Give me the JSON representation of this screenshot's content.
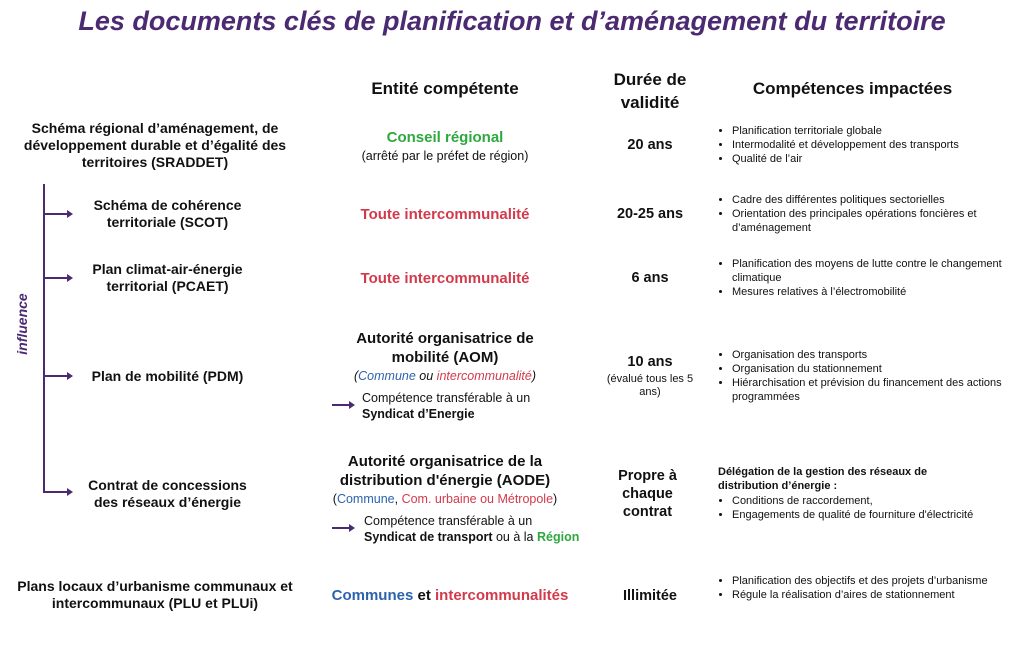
{
  "title": "Les documents clés de planification et d’aménagement du territoire",
  "headers": {
    "entity": "Entité compétente",
    "duration": "Durée de validité",
    "competences": "Compétences impactées"
  },
  "influence_label": "influence",
  "rows": [
    {
      "document": "Schéma régional d’aménagement, de développement durable et d’égalité des territoires (SRADDET)",
      "entity": "Conseil régional",
      "entity_note": "(arrêté par le préfet de région)",
      "duration": "20 ans",
      "competences": [
        "Planification territoriale globale",
        "Intermodalité et développement des transports",
        "Qualité de l’air"
      ]
    },
    {
      "document": "Schéma de cohérence territoriale (SCOT)",
      "entity": "Toute intercommunalité",
      "duration": "20-25 ans",
      "competences": [
        "Cadre des différentes politiques sectorielles",
        "Orientation des principales opérations foncières et d’aménagement"
      ]
    },
    {
      "document": "Plan climat-air-énergie territorial (PCAET)",
      "entity": "Toute intercommunalité",
      "duration": "6 ans",
      "competences": [
        "Planification des moyens de lutte contre le changement climatique",
        "Mesures relatives à l’électromobilité"
      ]
    },
    {
      "document": "Plan de mobilité (PDM)",
      "entity": "Autorité organisatrice de mobilité (AOM)",
      "entity_note_a": "Commune",
      "entity_note_sep": " ou ",
      "entity_note_b": "intercommunalité",
      "transfer_text": "Compétence transférable à un",
      "transfer_target": "Syndicat d’Energie",
      "duration": "10 ans",
      "duration_note": "(évalué tous les 5 ans)",
      "competences": [
        "Organisation des transports",
        "Organisation du stationnement",
        "Hiérarchisation et prévision du financement des actions programmées"
      ]
    },
    {
      "document": "Contrat de concessions des réseaux d’énergie",
      "entity": "Autorité organisatrice de la distribution d'énergie (AODE)",
      "entity_note_a": "Commune",
      "entity_note_b": "Com. urbaine ou Métropole",
      "transfer_text": "Compétence transférable à un",
      "transfer_target": "Syndicat de transport",
      "transfer_mid": " ou à la ",
      "transfer_target2": "Région",
      "duration": "Propre à chaque contrat",
      "competences_title": "Délégation de la gestion des réseaux de distribution d’énergie :",
      "competences": [
        "Conditions de raccordement,",
        "Engagements de qualité de fourniture d'électricité"
      ]
    },
    {
      "document": "Plans locaux d’urbanisme communaux et intercommunaux (PLU et PLUi)",
      "entity_a": "Communes",
      "entity_mid": " et ",
      "entity_b": "intercommunalités",
      "duration": "Illimitée",
      "competences": [
        "Planification des objectifs et des projets d’urbanisme",
        "Régule la réalisation d’aires de stationnement"
      ]
    }
  ],
  "colors": {
    "title": "#4b2a72",
    "green": "#2ea83f",
    "red": "#d23a4c",
    "blue": "#2d63ad"
  }
}
